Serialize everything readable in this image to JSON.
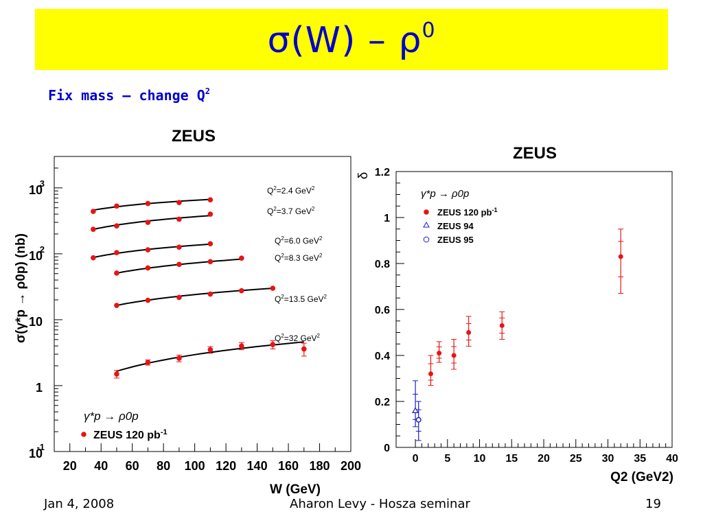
{
  "slide": {
    "title": "σ(W) – ρ",
    "title_sup": "0",
    "subtitle": "Fix mass – change Q",
    "subtitle_sup": "2"
  },
  "footer": {
    "date": "Jan 4, 2008",
    "author": "Aharon Levy - Hosza seminar",
    "page": "19"
  },
  "colors": {
    "title_bg": "#ffff00",
    "title_text": "#0000cc",
    "data_red": "#e81414",
    "data_blue": "#1a1acc"
  },
  "chart_data": [
    {
      "type": "scatter",
      "title": "ZEUS",
      "xlabel": "W (GeV)",
      "ylabel": "σ(γ*p → ρ0p) (nb)",
      "xlim": [
        10,
        200
      ],
      "ylim": [
        0.1,
        3000
      ],
      "yscale": "log",
      "xticks": [
        "20",
        "40",
        "60",
        "80",
        "100",
        "120",
        "140",
        "160",
        "180",
        "200"
      ],
      "yticks": [
        {
          "base": "10",
          "exp": "-1",
          "value": 0.1
        },
        {
          "base": "1",
          "exp": "",
          "value": 1
        },
        {
          "base": "10",
          "exp": "",
          "value": 10
        },
        {
          "base": "10",
          "exp": "2",
          "value": 100
        },
        {
          "base": "10",
          "exp": "3",
          "value": 1000
        }
      ],
      "legend": {
        "process": "γ*p → ρ0p",
        "entry": "ZEUS 120 pb-1"
      },
      "series": [
        {
          "name": "Q2=2.4 GeV2",
          "x": [
            35,
            50,
            70,
            90,
            110
          ],
          "y": [
            440,
            530,
            580,
            600,
            660
          ],
          "err": [
            0,
            0,
            0,
            0,
            0
          ]
        },
        {
          "name": "Q2=3.7 GeV2",
          "x": [
            35,
            50,
            70,
            90,
            110
          ],
          "y": [
            235,
            265,
            300,
            335,
            400
          ],
          "err": [
            0,
            0,
            0,
            0,
            0
          ]
        },
        {
          "name": "Q2=6.0 GeV2",
          "x": [
            35,
            50,
            70,
            90,
            110
          ],
          "y": [
            87,
            104,
            115,
            126,
            142
          ],
          "err": [
            0,
            0,
            0,
            0,
            0
          ]
        },
        {
          "name": "Q2=8.3 GeV2",
          "x": [
            50,
            70,
            90,
            110,
            130
          ],
          "y": [
            51,
            61,
            69,
            76,
            86
          ],
          "err": [
            0,
            0,
            0,
            0,
            0
          ]
        },
        {
          "name": "Q2=13.5 GeV2",
          "x": [
            50,
            70,
            90,
            110,
            130,
            150
          ],
          "y": [
            16.5,
            19.7,
            21.8,
            24.5,
            27.5,
            30
          ],
          "err": [
            0,
            0,
            0,
            0,
            0,
            0
          ]
        },
        {
          "name": "Q2=32 GeV2",
          "x": [
            50,
            70,
            90,
            110,
            130,
            150,
            170
          ],
          "y": [
            1.5,
            2.25,
            2.6,
            3.5,
            4.0,
            4.2,
            3.6
          ],
          "err": [
            0.2,
            0.2,
            0.3,
            0.4,
            0.5,
            0.6,
            0.8
          ]
        }
      ],
      "fits": [
        {
          "x": [
            35,
            110
          ],
          "y": [
            460,
            670
          ]
        },
        {
          "x": [
            35,
            110
          ],
          "y": [
            235,
            380
          ]
        },
        {
          "x": [
            35,
            110
          ],
          "y": [
            88,
            140
          ]
        },
        {
          "x": [
            50,
            130
          ],
          "y": [
            51,
            83
          ]
        },
        {
          "x": [
            50,
            150
          ],
          "y": [
            16.5,
            30
          ]
        },
        {
          "x": [
            50,
            170
          ],
          "y": [
            1.65,
            4.6
          ]
        }
      ]
    },
    {
      "type": "scatter",
      "title": "ZEUS",
      "xlabel": "Q2 (GeV2)",
      "ylabel": "δ",
      "xlim": [
        -3,
        40
      ],
      "ylim": [
        0,
        1.2
      ],
      "xticks": [
        "0",
        "5",
        "10",
        "15",
        "20",
        "25",
        "30",
        "35",
        "40"
      ],
      "yticks": [
        "0",
        "0.2",
        "0.4",
        "0.6",
        "0.8",
        "1",
        "1.2"
      ],
      "legend": {
        "process": "γ*p → ρ0p",
        "entries": [
          "ZEUS 120 pb-1",
          "ZEUS 94",
          "ZEUS 95"
        ]
      },
      "series": [
        {
          "name": "ZEUS 120 pb-1",
          "x": [
            2.4,
            3.7,
            6.0,
            8.3,
            13.5,
            32
          ],
          "y": [
            0.32,
            0.41,
            0.4,
            0.5,
            0.53,
            0.83
          ],
          "err_lo": [
            0.05,
            0.04,
            0.06,
            0.06,
            0.06,
            0.16
          ],
          "err_hi": [
            0.08,
            0.05,
            0.07,
            0.07,
            0.06,
            0.12
          ]
        },
        {
          "name": "ZEUS 94",
          "x": [
            0.0
          ],
          "y": [
            0.16
          ],
          "err_lo": [
            0.07
          ],
          "err_hi": [
            0.13
          ]
        },
        {
          "name": "ZEUS 95",
          "x": [
            0.5
          ],
          "y": [
            0.12
          ],
          "err_lo": [
            0.09
          ],
          "err_hi": [
            0.08
          ]
        }
      ]
    }
  ]
}
